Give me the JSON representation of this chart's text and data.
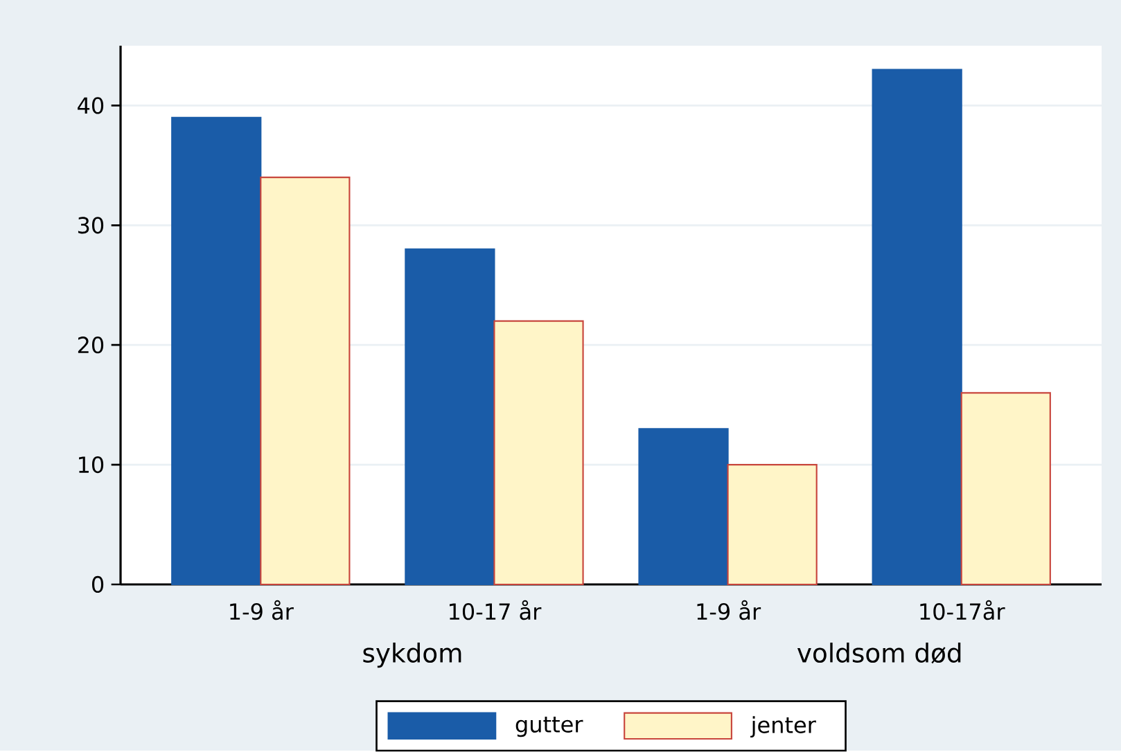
{
  "chart_data": {
    "type": "bar",
    "categories": [
      "1-9 år",
      "10-17 år",
      "1-9 år",
      "10-17år"
    ],
    "series": [
      {
        "name": "gutter",
        "color": "#1a5ca8",
        "values": [
          39,
          28,
          13,
          43
        ]
      },
      {
        "name": "jenter",
        "color": "#fff5c8",
        "values": [
          34,
          22,
          10,
          16
        ]
      }
    ],
    "ylim": [
      0,
      45
    ],
    "yticks": [
      0,
      10,
      20,
      30,
      40
    ],
    "grid": "y",
    "legend": "bottom",
    "annotations": [
      "sykdom",
      "voldsom død"
    ]
  }
}
